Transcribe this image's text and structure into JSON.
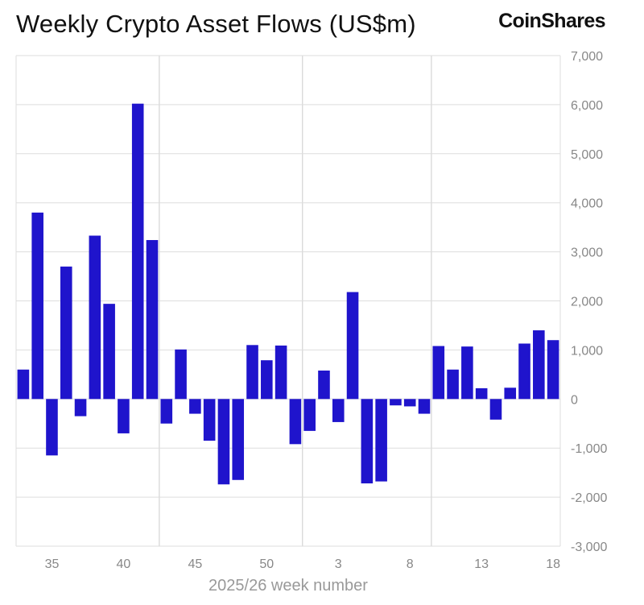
{
  "chart_data": {
    "type": "bar",
    "title": "Weekly Crypto Asset Flows (US$m)",
    "xlabel": "2025/26 week number",
    "ylabel": "",
    "ylim": [
      -3000,
      7000
    ],
    "yticks": [
      7000,
      6000,
      5000,
      4000,
      3000,
      2000,
      1000,
      0,
      -1000,
      -2000,
      -3000
    ],
    "ytick_labels": [
      "7,000",
      "6,000",
      "5,000",
      "4,000",
      "3,000",
      "2,000",
      "1,000",
      "0",
      "-1,000",
      "-2,000",
      "-3,000"
    ],
    "xtick_labels": [
      "35",
      "40",
      "45",
      "50",
      "3",
      "8",
      "13",
      "18"
    ],
    "categories": [
      "33",
      "34",
      "35",
      "36",
      "37",
      "38",
      "39",
      "40",
      "41",
      "42",
      "43",
      "44",
      "45",
      "46",
      "47",
      "48",
      "49",
      "50",
      "51",
      "52",
      "1",
      "2",
      "3",
      "4",
      "5",
      "6",
      "7",
      "8",
      "9",
      "10",
      "11",
      "12",
      "13",
      "14",
      "15",
      "16",
      "17",
      "18"
    ],
    "values": [
      600,
      3800,
      -1150,
      2700,
      -350,
      3330,
      1940,
      -700,
      6020,
      3240,
      -500,
      1010,
      -300,
      -850,
      -1740,
      -1650,
      1100,
      790,
      1090,
      -920,
      -650,
      580,
      -470,
      2180,
      -1720,
      -1680,
      -130,
      -150,
      -300,
      1080,
      600,
      1070,
      220,
      -420,
      230,
      1130,
      1400,
      1200
    ],
    "bar_color": "#1f14cc",
    "grid": true,
    "legend": "none"
  },
  "brand": {
    "name": "CoinShares"
  }
}
